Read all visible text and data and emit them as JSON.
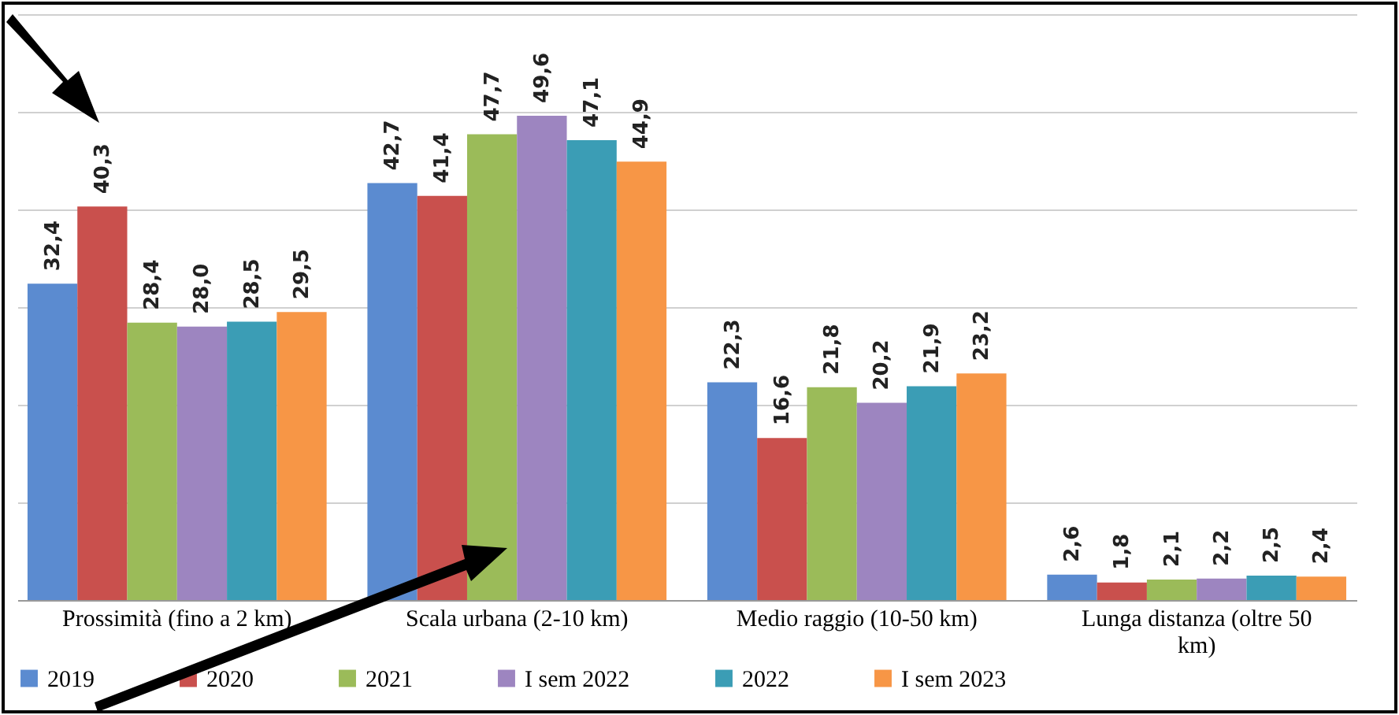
{
  "chart_data": {
    "type": "bar",
    "categories": [
      "Prossimità (fino a 2 km)",
      "Scala urbana (2-10 km)",
      "Medio raggio (10-50 km)",
      "Lunga distanza (oltre 50 km)"
    ],
    "series": [
      {
        "name": "2019",
        "color": "#5b8bd0",
        "values": [
          32.4,
          42.7,
          22.3,
          2.6
        ],
        "value_labels": [
          "32,4",
          "42,7",
          "22,3",
          "2,6"
        ]
      },
      {
        "name": "2020",
        "color": "#c9504d",
        "values": [
          40.3,
          41.4,
          16.6,
          1.8
        ],
        "value_labels": [
          "40,3",
          "41,4",
          "16,6",
          "1,8"
        ]
      },
      {
        "name": "2021",
        "color": "#9bbb59",
        "values": [
          28.4,
          47.7,
          21.8,
          2.1
        ],
        "value_labels": [
          "28,4",
          "47,7",
          "21,8",
          "2,1"
        ]
      },
      {
        "name": "I sem 2022",
        "color": "#9d85c0",
        "values": [
          28.0,
          49.6,
          20.2,
          2.2
        ],
        "value_labels": [
          "28,0",
          "49,6",
          "20,2",
          "2,2"
        ]
      },
      {
        "name": "2022",
        "color": "#3b9db5",
        "values": [
          28.5,
          47.1,
          21.9,
          2.5
        ],
        "value_labels": [
          "28,5",
          "47,1",
          "21,9",
          "2,5"
        ]
      },
      {
        "name": "I sem 2023",
        "color": "#f79646",
        "values": [
          29.5,
          44.9,
          23.2,
          2.4
        ],
        "value_labels": [
          "29,5",
          "44,9",
          "23,2",
          "2,4"
        ]
      }
    ],
    "ylim": [
      0,
      60
    ],
    "yticks": [
      {
        "value": 0,
        "label": null
      },
      {
        "value": 10,
        "label": null
      },
      {
        "value": 20,
        "label": null
      },
      {
        "value": 30,
        "label": null
      },
      {
        "value": 40,
        "label": null
      },
      {
        "value": 50,
        "label": null
      },
      {
        "value": 60,
        "label": null
      }
    ],
    "tick_labels": "x",
    "grid": "y",
    "legend": "bottom"
  }
}
